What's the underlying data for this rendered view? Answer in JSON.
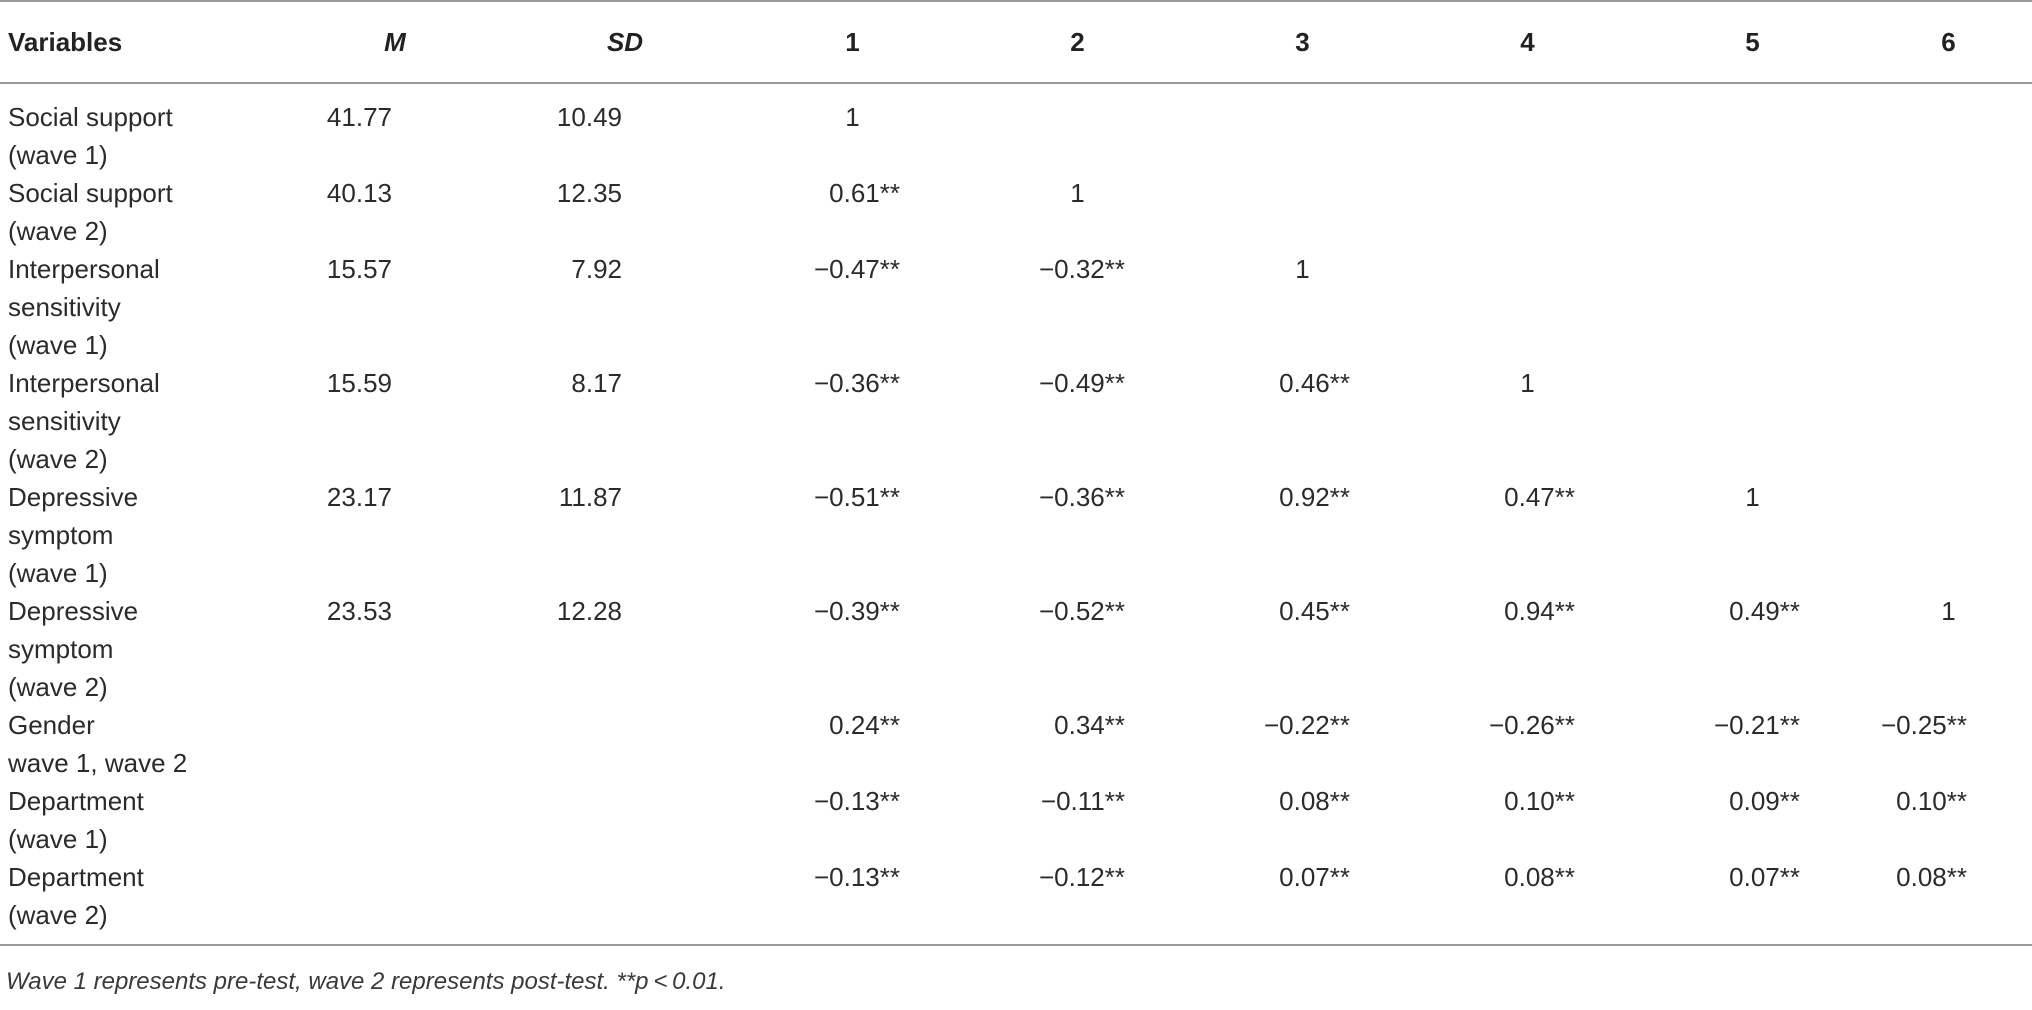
{
  "table": {
    "headers": [
      "Variables",
      "M",
      "SD",
      "1",
      "2",
      "3",
      "4",
      "5",
      "6"
    ],
    "rows": [
      {
        "label": [
          "Social support",
          "(wave 1)"
        ],
        "m": "41.77",
        "sd": "10.49",
        "c": [
          "1",
          "",
          "",
          "",
          "",
          ""
        ]
      },
      {
        "label": [
          "Social support",
          "(wave 2)"
        ],
        "m": "40.13",
        "sd": "12.35",
        "c": [
          "0.61**",
          "1",
          "",
          "",
          "",
          ""
        ]
      },
      {
        "label": [
          "Interpersonal",
          "sensitivity",
          "(wave 1)"
        ],
        "m": "15.57",
        "sd": "7.92",
        "c": [
          "−0.47**",
          "−0.32**",
          "1",
          "",
          "",
          ""
        ]
      },
      {
        "label": [
          "Interpersonal",
          "sensitivity",
          "(wave 2)"
        ],
        "m": "15.59",
        "sd": "8.17",
        "c": [
          "−0.36**",
          "−0.49**",
          "0.46**",
          "1",
          "",
          ""
        ]
      },
      {
        "label": [
          "Depressive",
          "symptom",
          "(wave 1)"
        ],
        "m": "23.17",
        "sd": "11.87",
        "c": [
          "−0.51**",
          "−0.36**",
          "0.92**",
          "0.47**",
          "1",
          ""
        ]
      },
      {
        "label": [
          "Depressive",
          "symptom",
          "(wave 2)"
        ],
        "m": "23.53",
        "sd": "12.28",
        "c": [
          "−0.39**",
          "−0.52**",
          "0.45**",
          "0.94**",
          "0.49**",
          "1"
        ]
      },
      {
        "label": [
          "Gender",
          "wave 1, wave 2"
        ],
        "m": "",
        "sd": "",
        "c": [
          "0.24**",
          "0.34**",
          "−0.22**",
          "−0.26**",
          "−0.21**",
          "−0.25**"
        ]
      },
      {
        "label": [
          "Department",
          "(wave 1)"
        ],
        "m": "",
        "sd": "",
        "c": [
          "−0.13**",
          "−0.11**",
          "0.08**",
          "0.10**",
          "0.09**",
          "0.10**"
        ]
      },
      {
        "label": [
          "Department",
          "(wave 2)"
        ],
        "m": "",
        "sd": "",
        "c": [
          "−0.13**",
          "−0.12**",
          "0.07**",
          "0.08**",
          "0.07**",
          "0.08**"
        ]
      }
    ],
    "note": "Wave 1 represents pre-test, wave 2 represents post-test. **p < 0.01."
  }
}
